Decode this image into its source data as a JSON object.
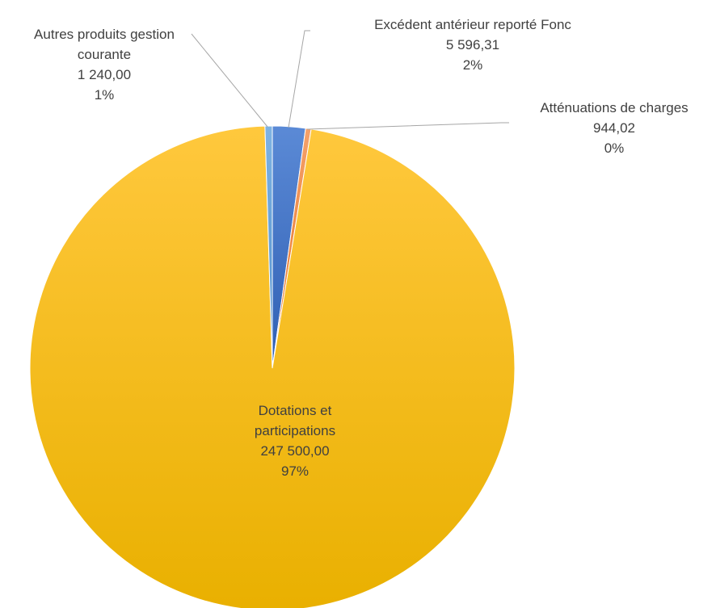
{
  "chart_data": {
    "type": "pie",
    "title": "",
    "slices": [
      {
        "label": "Excédent antérieur reporté Fonc",
        "value": 5596.31,
        "value_text": "5 596,31",
        "percent_text": "2%",
        "color": "#4472c4"
      },
      {
        "label": "Atténuations de charges",
        "value": 944.02,
        "value_text": "944,02",
        "percent_text": "0%",
        "color": "#ed7d31"
      },
      {
        "label": "Dotations et participations",
        "value": 247500.0,
        "value_text": "247 500,00",
        "percent_text": "97%",
        "color": "#ffc000"
      },
      {
        "label": "Autres produits gestion courante",
        "value": 1240.0,
        "value_text": "1 240,00",
        "percent_text": "1%",
        "color": "#5b9bd5"
      }
    ],
    "labels": {
      "autres": {
        "line1": "Autres produits gestion",
        "line2": "courante",
        "value": "1 240,00",
        "percent": "1%"
      },
      "excedent": {
        "line1": "Excédent antérieur reporté Fonc",
        "value": "5 596,31",
        "percent": "2%"
      },
      "attenuations": {
        "line1": "Atténuations de charges",
        "value": "944,02",
        "percent": "0%"
      },
      "dotations": {
        "line1": "Dotations et",
        "line2": "participations",
        "value": "247 500,00",
        "percent": "97%"
      }
    },
    "legend": "none",
    "start_angle": "top, clockwise"
  }
}
